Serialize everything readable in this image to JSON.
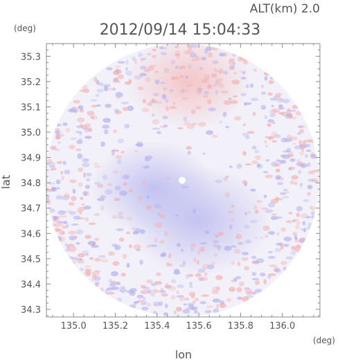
{
  "chart_data": {
    "type": "heatmap",
    "title": "2012/09/14 15:04:33",
    "subtitle": "ALT(km) 2.0",
    "xlabel": "lon",
    "ylabel": "lat",
    "xunit": "(deg)",
    "yunit": "(deg)",
    "xlim": [
      134.87,
      136.18
    ],
    "ylim": [
      34.27,
      35.35
    ],
    "xticks": [
      "135.0",
      "135.2",
      "135.4",
      "135.6",
      "135.8",
      "136.0"
    ],
    "yticks": [
      "34.3",
      "34.4",
      "34.5",
      "34.6",
      "34.7",
      "34.8",
      "34.9",
      "35.0",
      "35.1",
      "35.2",
      "35.3"
    ],
    "radar_center": {
      "lon": 135.52,
      "lat": 34.81
    },
    "radar_radius_deg_lon": 0.655,
    "grid": false,
    "legend": "none",
    "colors": {
      "positive": "#f4a6a6",
      "negative": "#a6a6f4",
      "neutral": "#f2f0f8",
      "axis": "#888888",
      "text": "#555555"
    },
    "regions": [
      {
        "name": "positive-north",
        "lon": 135.55,
        "lat": 35.2,
        "value": 0.3
      },
      {
        "name": "negative-center",
        "lon": 135.6,
        "lat": 34.65,
        "value": -0.35
      },
      {
        "name": "negative-west",
        "lon": 135.38,
        "lat": 34.78,
        "value": -0.3
      }
    ]
  }
}
